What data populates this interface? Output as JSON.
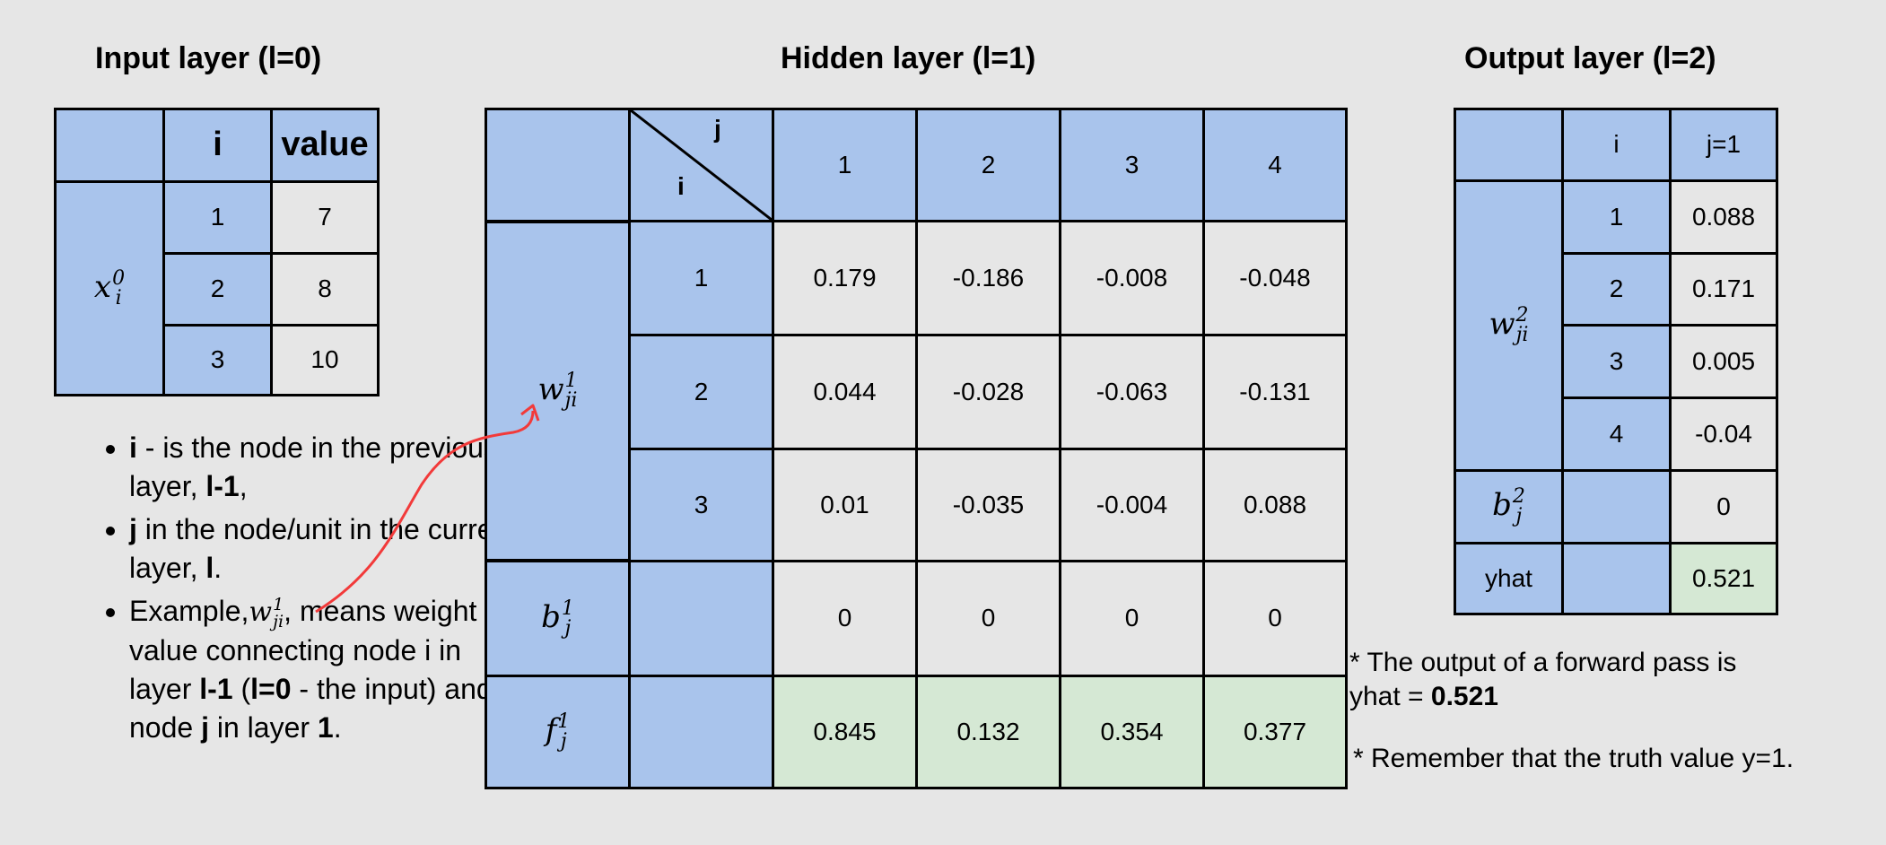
{
  "input_layer": {
    "title": "Input layer (l=0)",
    "col_i": "i",
    "col_value": "value",
    "symbol": {
      "base": "x",
      "sup": "0",
      "sub": "i"
    },
    "rows": [
      {
        "i": "1",
        "value": "7"
      },
      {
        "i": "2",
        "value": "8"
      },
      {
        "i": "3",
        "value": "10"
      }
    ]
  },
  "hidden_layer": {
    "title": "Hidden layer (l=1)",
    "corner_j": "j",
    "corner_i": "i",
    "columns": [
      "1",
      "2",
      "3",
      "4"
    ],
    "weight_symbol": {
      "base": "w",
      "sup": "1",
      "sub": "ji"
    },
    "weights": [
      {
        "i": "1",
        "values": [
          "0.179",
          "-0.186",
          "-0.008",
          "-0.048"
        ]
      },
      {
        "i": "2",
        "values": [
          "0.044",
          "-0.028",
          "-0.063",
          "-0.131"
        ]
      },
      {
        "i": "3",
        "values": [
          "0.01",
          "-0.035",
          "-0.004",
          "0.088"
        ]
      }
    ],
    "bias_symbol": {
      "base": "b",
      "sup": "1",
      "sub": "j"
    },
    "bias": [
      "0",
      "0",
      "0",
      "0"
    ],
    "activation_symbol": {
      "base": "f",
      "sup": "1",
      "sub": "j"
    },
    "activation": [
      "0.845",
      "0.132",
      "0.354",
      "0.377"
    ]
  },
  "output_layer": {
    "title": "Output layer (l=2)",
    "col_i": "i",
    "col_j": "j=1",
    "weight_symbol": {
      "base": "w",
      "sup": "2",
      "sub": "ji"
    },
    "weights": [
      {
        "i": "1",
        "value": "0.088"
      },
      {
        "i": "2",
        "value": "0.171"
      },
      {
        "i": "3",
        "value": "0.005"
      },
      {
        "i": "4",
        "value": "-0.04"
      }
    ],
    "bias_symbol": {
      "base": "b",
      "sup": "2",
      "sub": "j"
    },
    "bias": "0",
    "yhat_label": "yhat",
    "yhat": "0.521"
  },
  "notes": {
    "n1_bold_i": "i",
    "n1_text": " - is the node in the previous layer, ",
    "n1_bold_l": "l-1",
    "n1_end": ",",
    "n2_bold_j": "j",
    "n2_text": " in the node/unit in the current layer, ",
    "n2_bold_l": "l",
    "n2_end": ".",
    "n3_start": "Example,",
    "n3_symbol": {
      "base": "w",
      "sup": "1",
      "sub": "ji"
    },
    "n3_text1": ", means weight value connecting node i in layer ",
    "n3_bold1": "l-1",
    "n3_text2": " (",
    "n3_bold2": "l=0",
    "n3_text3": " - the input) and node ",
    "n3_bold3": "j",
    "n3_text4": " in layer ",
    "n3_bold4": "1",
    "n3_end": "."
  },
  "side_notes": {
    "output_line1": "* The output of a forward pass is",
    "output_line2_prefix": "yhat = ",
    "output_value": "0.521",
    "truth_note": "* Remember that the truth value y=1."
  },
  "colors": {
    "background": "#e6e6e6",
    "header_blue": "#a9c4ec",
    "result_green": "#d5e8d4",
    "arrow_red": "#f23a3a"
  }
}
